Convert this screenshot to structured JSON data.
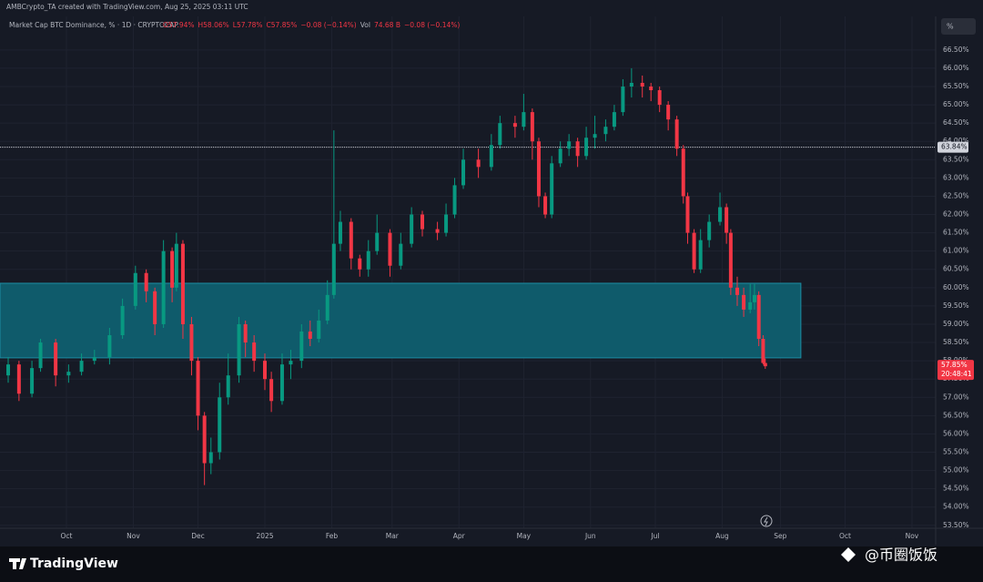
{
  "chart_data": {
    "type": "candlestick",
    "creator": "AMBCrypto_TA created with TradingView.com, Aug 25, 2025 03:11 UTC",
    "title": "Market Cap BTC Dominance, % · 1D · CRYPTOCAP",
    "legend_values": [
      "O57.94%",
      "H58.06%",
      "L57.78%",
      "C57.85%",
      "−0.08 (−0.14%)",
      "Vol",
      "74.68 B",
      "−0.08 (−0.14%)"
    ],
    "scale_button": "%",
    "brand": "TradingView",
    "watermark": "@币圈饭饭",
    "up_color": "#089981",
    "down_color": "#f23645",
    "x": [
      0,
      5,
      11,
      15,
      22,
      28,
      34,
      40,
      47,
      53,
      59,
      64,
      68,
      72,
      76,
      78,
      81,
      85,
      88,
      91,
      94,
      98,
      102,
      107,
      110,
      114,
      119,
      122,
      127,
      131,
      136,
      140,
      144,
      148,
      151,
      154,
      159,
      163,
      167,
      171,
      177,
      182,
      187,
      192,
      199,
      203,
      207,
      211,
      218,
      224,
      228,
      235,
      239,
      243,
      246,
      249,
      252,
      256,
      260,
      264,
      268,
      272,
      277,
      281,
      285,
      289,
      294,
      298,
      302,
      306,
      310,
      313,
      315,
      318,
      321,
      325,
      330,
      333,
      335,
      338,
      341,
      344,
      346,
      348,
      350,
      351
    ],
    "open": [
      57.6,
      57.9,
      57.1,
      57.8,
      58.5,
      57.6,
      57.7,
      58.0,
      58.1,
      58.7,
      59.5,
      60.4,
      59.9,
      59.0,
      61.0,
      60.0,
      61.2,
      59.0,
      58.0,
      56.5,
      55.2,
      55.5,
      57.0,
      57.6,
      59.0,
      58.5,
      58.0,
      57.5,
      56.9,
      57.9,
      58.0,
      58.8,
      58.6,
      59.1,
      59.8,
      61.2,
      61.8,
      60.8,
      60.5,
      61.0,
      61.5,
      60.6,
      61.2,
      62.0,
      61.6,
      61.5,
      62.0,
      62.8,
      63.5,
      63.3,
      63.9,
      64.5,
      64.4,
      64.8,
      64.0,
      62.5,
      62.0,
      63.4,
      63.8,
      64.0,
      63.6,
      64.1,
      64.2,
      64.4,
      64.8,
      65.5,
      65.6,
      65.5,
      65.4,
      65.0,
      64.6,
      63.8,
      62.5,
      61.5,
      60.5,
      61.3,
      61.8,
      62.2,
      61.5,
      60.0,
      59.8,
      59.4,
      59.6,
      59.8,
      58.6,
      57.94
    ],
    "high": [
      58.1,
      58.0,
      58.0,
      58.6,
      58.6,
      57.9,
      58.2,
      58.3,
      58.9,
      59.7,
      60.6,
      60.5,
      60.0,
      61.3,
      61.1,
      61.5,
      61.3,
      59.2,
      58.1,
      56.6,
      55.9,
      57.4,
      58.2,
      59.2,
      59.1,
      58.7,
      58.2,
      57.7,
      58.2,
      58.3,
      59.0,
      59.1,
      59.4,
      60.2,
      64.3,
      62.1,
      61.9,
      60.9,
      61.3,
      62.0,
      61.6,
      61.5,
      62.2,
      62.1,
      61.8,
      62.3,
      63.0,
      63.8,
      63.8,
      64.2,
      64.7,
      64.7,
      65.3,
      64.9,
      64.1,
      62.6,
      63.6,
      64.0,
      64.2,
      64.1,
      64.4,
      64.7,
      64.6,
      65.0,
      65.7,
      66.0,
      65.8,
      65.6,
      65.5,
      65.1,
      64.7,
      63.9,
      62.6,
      61.6,
      61.6,
      62.0,
      62.6,
      62.3,
      61.6,
      60.3,
      60.0,
      60.1,
      60.1,
      59.9,
      58.7,
      58.06
    ],
    "low": [
      57.4,
      56.9,
      57.0,
      57.7,
      57.3,
      57.4,
      57.6,
      57.9,
      57.9,
      58.6,
      59.4,
      59.6,
      58.7,
      58.9,
      59.6,
      59.9,
      58.6,
      57.6,
      56.1,
      54.6,
      54.9,
      55.3,
      56.8,
      57.4,
      58.1,
      57.7,
      57.2,
      56.6,
      56.8,
      57.5,
      57.8,
      58.4,
      58.5,
      59.0,
      59.7,
      61.0,
      60.5,
      60.3,
      60.3,
      60.9,
      60.3,
      60.5,
      61.1,
      61.4,
      61.3,
      61.4,
      61.9,
      62.7,
      63.0,
      63.2,
      63.8,
      64.1,
      64.3,
      63.5,
      62.2,
      61.9,
      61.9,
      63.3,
      63.6,
      63.3,
      63.5,
      63.8,
      64.0,
      64.3,
      64.7,
      65.2,
      65.2,
      65.1,
      64.8,
      64.3,
      63.6,
      62.3,
      61.2,
      60.4,
      60.4,
      61.1,
      61.7,
      61.2,
      59.8,
      59.5,
      59.2,
      59.3,
      59.4,
      58.4,
      57.9,
      57.78
    ],
    "close": [
      57.9,
      57.1,
      57.8,
      58.5,
      57.6,
      57.7,
      58.0,
      58.1,
      58.7,
      59.5,
      60.4,
      59.9,
      59.0,
      61.0,
      60.0,
      61.2,
      59.0,
      58.0,
      56.5,
      55.2,
      55.5,
      57.0,
      57.6,
      59.0,
      58.5,
      58.0,
      57.5,
      56.9,
      57.9,
      58.0,
      58.8,
      58.6,
      59.1,
      59.8,
      61.2,
      61.8,
      60.8,
      60.5,
      61.0,
      61.5,
      60.6,
      61.2,
      62.0,
      61.6,
      61.5,
      62.0,
      62.8,
      63.5,
      63.3,
      63.9,
      64.5,
      64.4,
      64.8,
      64.0,
      62.5,
      62.0,
      63.4,
      63.8,
      64.0,
      63.6,
      64.1,
      64.2,
      64.4,
      64.8,
      65.5,
      65.6,
      65.5,
      65.4,
      65.0,
      64.6,
      63.8,
      62.5,
      61.5,
      60.5,
      61.3,
      61.8,
      62.2,
      61.5,
      60.0,
      59.8,
      59.4,
      59.6,
      59.8,
      58.6,
      57.94,
      57.85
    ],
    "xlim": [
      -3.8,
      430
    ],
    "xticks": [
      {
        "value": 27,
        "label": "Oct"
      },
      {
        "value": 58,
        "label": "Nov"
      },
      {
        "value": 88,
        "label": "Dec"
      },
      {
        "value": 119,
        "label": "2025"
      },
      {
        "value": 150,
        "label": "Feb"
      },
      {
        "value": 178,
        "label": "Mar"
      },
      {
        "value": 209,
        "label": "Apr"
      },
      {
        "value": 239,
        "label": "May"
      },
      {
        "value": 270,
        "label": "Jun"
      },
      {
        "value": 300,
        "label": "Jul"
      },
      {
        "value": 331,
        "label": "Aug"
      },
      {
        "value": 358,
        "label": "Sep"
      },
      {
        "value": 388,
        "label": "Oct"
      },
      {
        "value": 419,
        "label": "Nov"
      }
    ],
    "ylim": [
      53.42,
      66.87
    ],
    "yticks": [
      {
        "value": 53.5,
        "label": "53.50%"
      },
      {
        "value": 54,
        "label": "54.00%"
      },
      {
        "value": 54.5,
        "label": "54.50%"
      },
      {
        "value": 55,
        "label": "55.00%"
      },
      {
        "value": 55.5,
        "label": "55.50%"
      },
      {
        "value": 56,
        "label": "56.00%"
      },
      {
        "value": 56.5,
        "label": "56.50%"
      },
      {
        "value": 57,
        "label": "57.00%"
      },
      {
        "value": 57.5,
        "label": "57.50%"
      },
      {
        "value": 58,
        "label": "58.00%"
      },
      {
        "value": 58.5,
        "label": "58.50%"
      },
      {
        "value": 59,
        "label": "59.00%"
      },
      {
        "value": 59.5,
        "label": "59.50%"
      },
      {
        "value": 60,
        "label": "60.00%"
      },
      {
        "value": 60.5,
        "label": "60.50%"
      },
      {
        "value": 61,
        "label": "61.00%"
      },
      {
        "value": 61.5,
        "label": "61.50%"
      },
      {
        "value": 62,
        "label": "62.00%"
      },
      {
        "value": 62.5,
        "label": "62.50%"
      },
      {
        "value": 63,
        "label": "63.00%"
      },
      {
        "value": 63.5,
        "label": "63.50%"
      },
      {
        "value": 64,
        "label": "64.00%"
      },
      {
        "value": 64.5,
        "label": "64.50%"
      },
      {
        "value": 65,
        "label": "65.00%"
      },
      {
        "value": 65.5,
        "label": "65.50%"
      },
      {
        "value": 66,
        "label": "66.00%"
      },
      {
        "value": 66.5,
        "label": "66.50%"
      }
    ],
    "zone": {
      "low": 58.08,
      "high": 60.12,
      "x": [
        -3.8,
        367.5
      ],
      "color": "#0f5b6b"
    },
    "hline": {
      "value": 63.84,
      "label": "63.84%"
    },
    "last": {
      "value": 57.85,
      "label": "57.85%",
      "countdown": "20:48:41"
    }
  }
}
